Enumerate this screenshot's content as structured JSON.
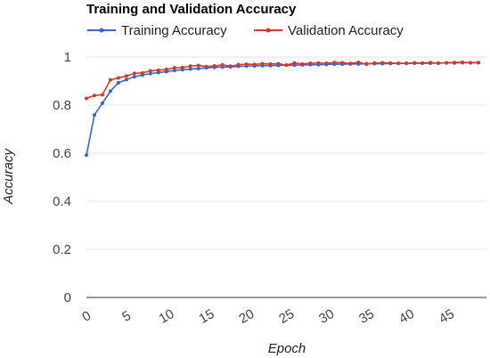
{
  "chart_data": {
    "type": "line",
    "title": "Training and Validation Accuracy",
    "xlabel": "Epoch",
    "ylabel": "Accuracy",
    "xlim": [
      0,
      50
    ],
    "ylim": [
      0,
      1
    ],
    "x_ticks": [
      0,
      5,
      10,
      15,
      20,
      25,
      30,
      35,
      40,
      45
    ],
    "y_ticks": [
      "0",
      "0.2",
      "0.4",
      "0.6",
      "0.8",
      "1"
    ],
    "y_tick_values": [
      0,
      0.2,
      0.4,
      0.6,
      0.8,
      1
    ],
    "grid": "horizontal",
    "legend_position": "top",
    "x": [
      0,
      1,
      2,
      3,
      4,
      5,
      6,
      7,
      8,
      9,
      10,
      11,
      12,
      13,
      14,
      15,
      16,
      17,
      18,
      19,
      20,
      21,
      22,
      23,
      24,
      25,
      26,
      27,
      28,
      29,
      30,
      31,
      32,
      33,
      34,
      35,
      36,
      37,
      38,
      39,
      40,
      41,
      42,
      43,
      44,
      45,
      46,
      47,
      48,
      49
    ],
    "series": [
      {
        "name": "Training Accuracy",
        "color": "#3367d6",
        "values": [
          0.592,
          0.759,
          0.808,
          0.858,
          0.893,
          0.906,
          0.918,
          0.925,
          0.931,
          0.935,
          0.939,
          0.944,
          0.947,
          0.95,
          0.952,
          0.955,
          0.957,
          0.958,
          0.959,
          0.961,
          0.962,
          0.963,
          0.964,
          0.964,
          0.965,
          0.966,
          0.966,
          0.967,
          0.968,
          0.968,
          0.969,
          0.97,
          0.97,
          0.971,
          0.971,
          0.972,
          0.972,
          0.972,
          0.973,
          0.973,
          0.974,
          0.974,
          0.974,
          0.974,
          0.975,
          0.975,
          0.975,
          0.976,
          0.976,
          0.976
        ]
      },
      {
        "name": "Validation Accuracy",
        "color": "#d23b2a",
        "values": [
          0.828,
          0.84,
          0.843,
          0.905,
          0.913,
          0.921,
          0.932,
          0.934,
          0.942,
          0.945,
          0.948,
          0.955,
          0.956,
          0.962,
          0.965,
          0.96,
          0.963,
          0.967,
          0.962,
          0.968,
          0.97,
          0.969,
          0.972,
          0.971,
          0.972,
          0.966,
          0.975,
          0.971,
          0.974,
          0.975,
          0.974,
          0.977,
          0.976,
          0.973,
          0.978,
          0.97,
          0.975,
          0.976,
          0.975,
          0.974,
          0.973,
          0.976,
          0.975,
          0.977,
          0.974,
          0.976,
          0.977,
          0.978,
          0.976,
          0.977
        ]
      }
    ]
  }
}
